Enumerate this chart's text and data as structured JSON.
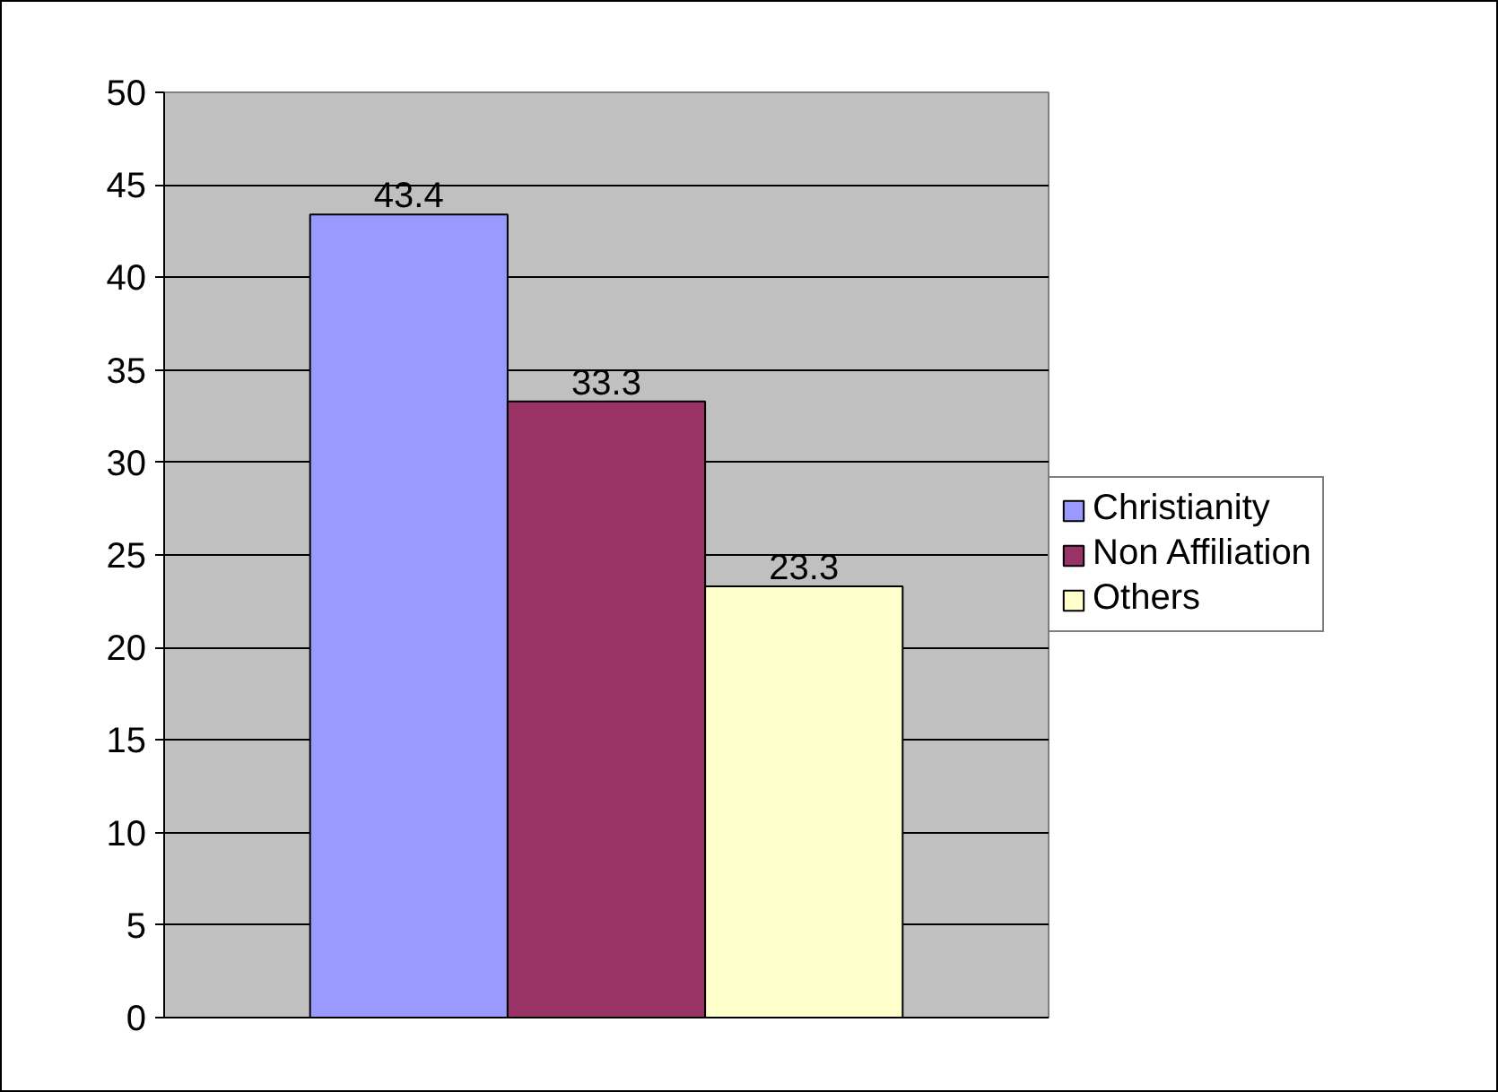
{
  "chart_data": {
    "type": "bar",
    "categories": [
      null
    ],
    "series": [
      {
        "name": "Christianity",
        "color": "#9999ff",
        "values": [
          43.4
        ]
      },
      {
        "name": "Non Affiliation",
        "color": "#993366",
        "values": [
          33.3
        ]
      },
      {
        "name": "Others",
        "color": "#ffffcc",
        "values": [
          23.3
        ]
      }
    ],
    "ylim": [
      0,
      50
    ],
    "yticks": [
      0,
      5,
      10,
      15,
      20,
      25,
      30,
      35,
      40,
      45,
      50
    ],
    "grid": "y",
    "legend": "right",
    "data_labels": true,
    "tick_labels": "y"
  }
}
